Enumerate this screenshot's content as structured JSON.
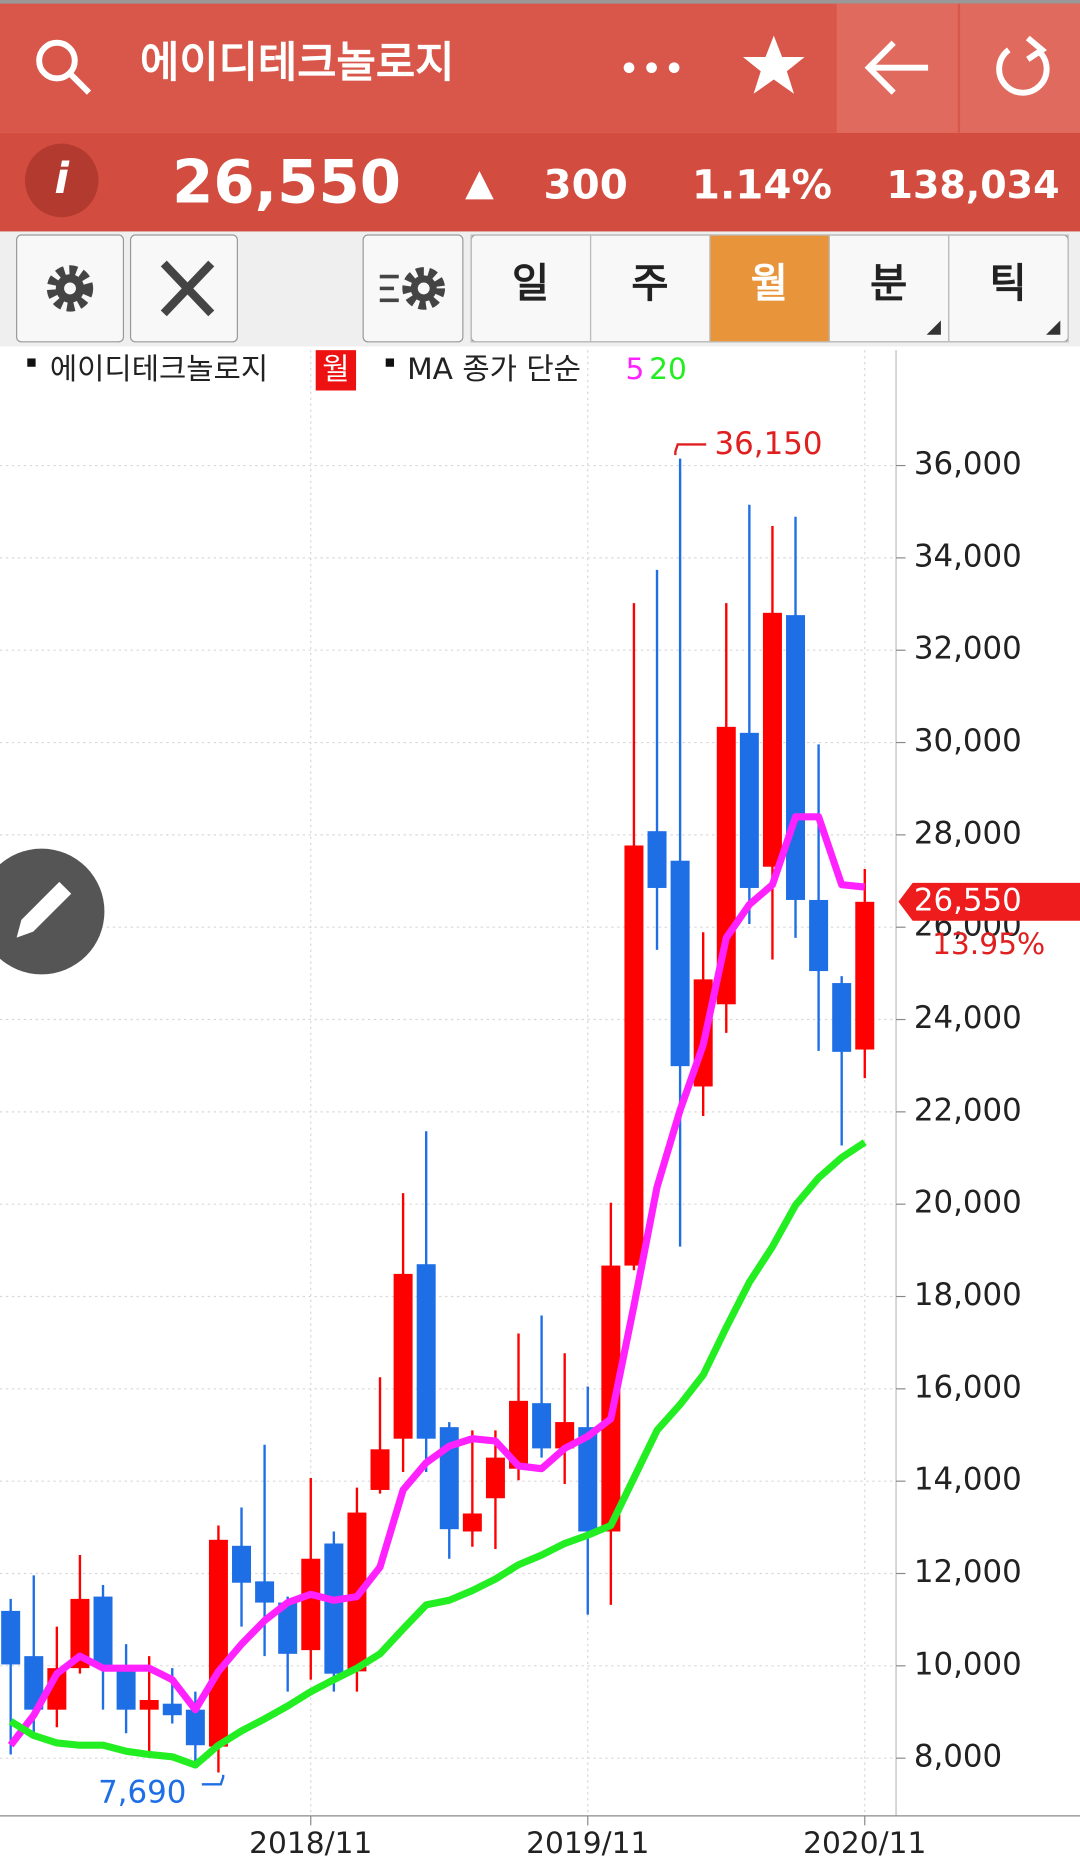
{
  "header": {
    "title": "에이디테크놀로지",
    "price": "26,550",
    "change": "300",
    "change_pct": "1.14%",
    "volume": "138,034"
  },
  "toolbar": {
    "tabs": [
      "일",
      "주",
      "월",
      "분",
      "틱"
    ]
  },
  "chart_data": {
    "type": "candlestick",
    "legend": {
      "name": "에이디테크놀로지",
      "period": "월",
      "ma_label": "MA 종가 단순"
    },
    "categories": [
      null,
      null,
      null,
      null,
      null,
      null,
      null,
      null,
      null,
      null,
      null,
      null,
      null,
      "2018/11",
      null,
      null,
      null,
      null,
      null,
      null,
      null,
      null,
      null,
      null,
      null,
      "2019/11",
      null,
      null,
      null,
      null,
      null,
      null,
      null,
      null,
      null,
      null,
      null,
      "2020/11"
    ],
    "up_color": "#ff0000",
    "down_color": "#1e6fe6",
    "open": [
      11190,
      10210,
      9050,
      9950,
      11500,
      10000,
      9050,
      9180,
      9050,
      8250,
      12600,
      11830,
      11370,
      10340,
      12650,
      9880,
      13810,
      14920,
      18700,
      15170,
      12910,
      13630,
      14270,
      15690,
      14710,
      15170,
      12910,
      18670,
      28080,
      27440,
      22550,
      24330,
      30210,
      27310,
      32760,
      26590,
      24790,
      23350
    ],
    "high": [
      11450,
      11960,
      10850,
      12400,
      11750,
      10470,
      10210,
      9950,
      9440,
      13040,
      13430,
      14790,
      11500,
      14070,
      12910,
      13860,
      16250,
      20240,
      21580,
      15280,
      15100,
      15100,
      17200,
      17590,
      16770,
      16050,
      20030,
      33020,
      33740,
      36150,
      25890,
      33020,
      35150,
      34690,
      34890,
      29960,
      24940,
      27260
    ],
    "low": [
      8080,
      8490,
      8670,
      9830,
      9050,
      8540,
      8030,
      8750,
      7800,
      7690,
      10850,
      10210,
      9440,
      9700,
      9440,
      9440,
      13730,
      14200,
      14200,
      12320,
      12580,
      12530,
      14020,
      14510,
      13940,
      11110,
      11320,
      18570,
      25510,
      19080,
      21910,
      23710,
      26070,
      25300,
      25770,
      23320,
      21270,
      22730
    ],
    "close": [
      10030,
      9050,
      9950,
      11450,
      10000,
      9050,
      9260,
      8930,
      8280,
      12730,
      11800,
      11370,
      10260,
      12320,
      9830,
      13320,
      14690,
      18490,
      14920,
      12960,
      13300,
      14510,
      15740,
      14710,
      15280,
      12910,
      18670,
      27770,
      26850,
      22990,
      24870,
      30340,
      26850,
      32810,
      26590,
      25050,
      23300,
      26550
    ],
    "series": [
      {
        "name": "5",
        "color": "#ff22ff",
        "values": [
          8280,
          8930,
          9830,
          10210,
          9950,
          9950,
          9950,
          9700,
          9050,
          9880,
          10470,
          10980,
          11370,
          11550,
          11420,
          11500,
          12140,
          13810,
          14400,
          14760,
          14920,
          14870,
          14330,
          14270,
          14710,
          14970,
          15350,
          17800,
          20370,
          22040,
          23450,
          25770,
          26490,
          26920,
          28390,
          28390,
          26920,
          26870
        ]
      },
      {
        "name": "20",
        "color": "#22ee22",
        "values": [
          8800,
          8490,
          8330,
          8280,
          8280,
          8150,
          8080,
          8030,
          7850,
          8280,
          8590,
          8850,
          9130,
          9440,
          9700,
          9950,
          10260,
          10800,
          11320,
          11420,
          11630,
          11880,
          12190,
          12400,
          12650,
          12830,
          13040,
          14070,
          15100,
          15660,
          16300,
          17330,
          18310,
          19080,
          19980,
          20570,
          21010,
          21340
        ]
      }
    ],
    "annotations": {
      "max": {
        "value": 36150,
        "label": "36,150"
      },
      "min": {
        "value": 7690,
        "label": "7,690"
      },
      "last": {
        "value": 26550,
        "label": "26,550"
      },
      "change": {
        "value": 13.95,
        "label": "13.95%"
      }
    },
    "ylim": [
      6750,
      38500
    ],
    "yticks": [
      {
        "value": 8000,
        "label": "8,000"
      },
      {
        "value": 10000,
        "label": "10,000"
      },
      {
        "value": 12000,
        "label": "12,000"
      },
      {
        "value": 14000,
        "label": "14,000"
      },
      {
        "value": 16000,
        "label": "16,000"
      },
      {
        "value": 18000,
        "label": "18,000"
      },
      {
        "value": 20000,
        "label": "20,000"
      },
      {
        "value": 22000,
        "label": "22,000"
      },
      {
        "value": 24000,
        "label": "24,000"
      },
      {
        "value": 26000,
        "label": "26,000"
      },
      {
        "value": 28000,
        "label": "28,000"
      },
      {
        "value": 30000,
        "label": "30,000"
      },
      {
        "value": 32000,
        "label": "32,000"
      },
      {
        "value": 34000,
        "label": "34,000"
      },
      {
        "value": 36000,
        "label": "36,000"
      }
    ],
    "grid": true
  }
}
